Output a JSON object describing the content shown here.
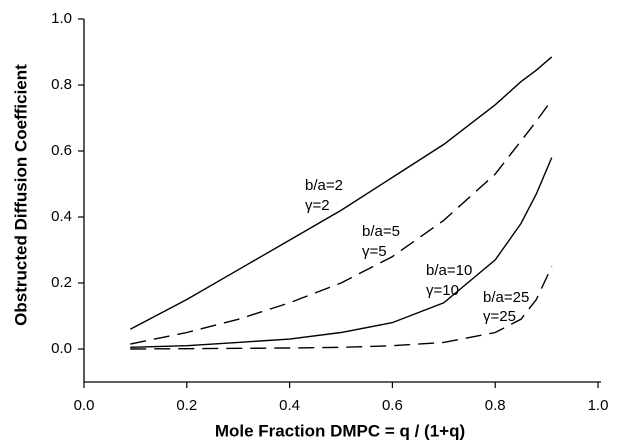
{
  "chart_data": {
    "type": "line",
    "xlabel": "Mole Fraction DMPC = q / (1+q)",
    "ylabel": "Obstructed Diffusion Coefficient",
    "x": [
      0.09,
      0.2,
      0.3,
      0.4,
      0.5,
      0.6,
      0.7,
      0.8,
      0.85,
      0.88,
      0.91
    ],
    "series": [
      {
        "color": "#000000",
        "dashed": false,
        "values": [
          0.06,
          0.15,
          0.24,
          0.33,
          0.42,
          0.52,
          0.62,
          0.74,
          0.81,
          0.845,
          0.885
        ]
      },
      {
        "color": "#000000",
        "dashed": true,
        "values": [
          0.015,
          0.05,
          0.09,
          0.14,
          0.2,
          0.28,
          0.39,
          0.53,
          0.63,
          0.69,
          0.755
        ]
      },
      {
        "color": "#000000",
        "dashed": false,
        "values": [
          0.005,
          0.01,
          0.02,
          0.03,
          0.05,
          0.08,
          0.14,
          0.27,
          0.38,
          0.47,
          0.58
        ]
      },
      {
        "color": "#000000",
        "dashed": true,
        "values": [
          0,
          0.001,
          0.002,
          0.003,
          0.005,
          0.01,
          0.02,
          0.05,
          0.09,
          0.15,
          0.25
        ]
      }
    ],
    "annotations": [
      "b/a=2",
      "γ=2",
      "b/a=5",
      "γ=5",
      "b/a=10",
      "γ=10",
      "b/a=25",
      "γ=25"
    ],
    "xlim": [
      0,
      1
    ],
    "ylim": [
      -0.1,
      1.0
    ],
    "xticks": [
      {
        "value": 0,
        "label": "0.0"
      },
      0.2,
      0.4,
      0.6,
      0.8,
      {
        "value": 1,
        "label": "1.0"
      }
    ],
    "yticks": [
      {
        "value": 0,
        "label": "0.0"
      },
      0.2,
      0.4,
      0.6,
      0.8,
      {
        "value": 1,
        "label": "1.0"
      }
    ]
  }
}
